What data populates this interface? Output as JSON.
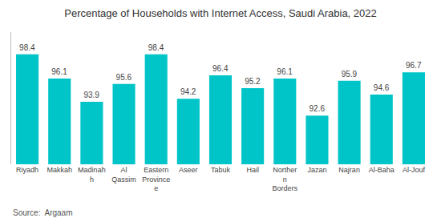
{
  "chart_data": {
    "type": "bar",
    "title": "Percentage of Households with Internet Access, Saudi Arabia, 2022",
    "categories": [
      "Riyadh",
      "Makkah",
      "Madinah\nh",
      "Al\nQassim",
      "Eastern\nProvince\ne",
      "Aseer",
      "Tabuk",
      "Hail",
      "Norther\nn\nBorders",
      "Jazan",
      "Najran",
      "Al-Baha",
      "Al-Jouf"
    ],
    "values": [
      98.4,
      96.1,
      93.9,
      95.6,
      98.4,
      94.2,
      96.4,
      95.2,
      96.1,
      92.6,
      95.9,
      94.6,
      96.7
    ],
    "color": "#00C5C8",
    "ylim": [
      88,
      100.5
    ],
    "grid": false,
    "data_labels": true,
    "tick_labels": "x",
    "annotations": [
      "Source:  Argaam"
    ]
  }
}
